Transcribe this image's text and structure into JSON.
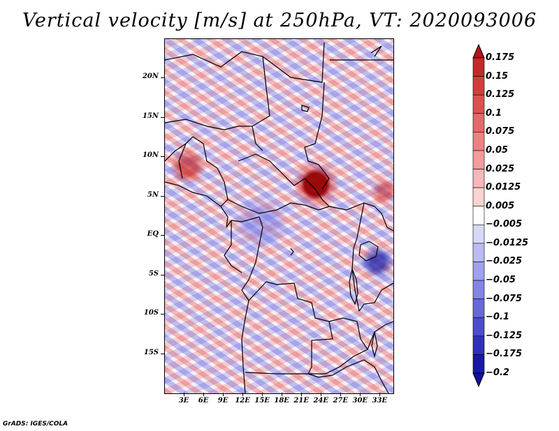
{
  "title": "Vertical velocity [m/s] at 250hPa, VT: 2020093006",
  "footer": "GrADS: IGES/COLA",
  "map": {
    "lat_labels": [
      "20N",
      "15N",
      "10N",
      "5N",
      "EQ",
      "5S",
      "10S",
      "15S"
    ],
    "lat_values": [
      20,
      15,
      10,
      5,
      0,
      -5,
      -10,
      -15
    ],
    "lat_range": [
      -20,
      25
    ],
    "lon_labels": [
      "3E",
      "6E",
      "9E",
      "12E",
      "15E",
      "18E",
      "21E",
      "24E",
      "27E",
      "30E",
      "33E"
    ],
    "lon_values": [
      3,
      6,
      9,
      12,
      15,
      18,
      21,
      24,
      27,
      30,
      33
    ],
    "lon_range": [
      0,
      35
    ]
  },
  "colorbar": {
    "labels": [
      "0.175",
      "0.15",
      "0.125",
      "0.1",
      "0.075",
      "0.05",
      "0.025",
      "0.0125",
      "0.005",
      "−0.005",
      "−0.0125",
      "−0.025",
      "−0.05",
      "−0.075",
      "−0.1",
      "−0.125",
      "−0.175",
      "−0.2"
    ],
    "colors": [
      "#b41414",
      "#c42828",
      "#d43c3c",
      "#de5050",
      "#e66868",
      "#ec8282",
      "#f29c9c",
      "#f6b8b8",
      "#fad4d4",
      "#ffffff",
      "#d8d8f8",
      "#bcbcf2",
      "#a0a0ec",
      "#8484e4",
      "#6868dc",
      "#4c4cd0",
      "#3030c0",
      "#1818a8",
      "#1010a0"
    ]
  }
}
